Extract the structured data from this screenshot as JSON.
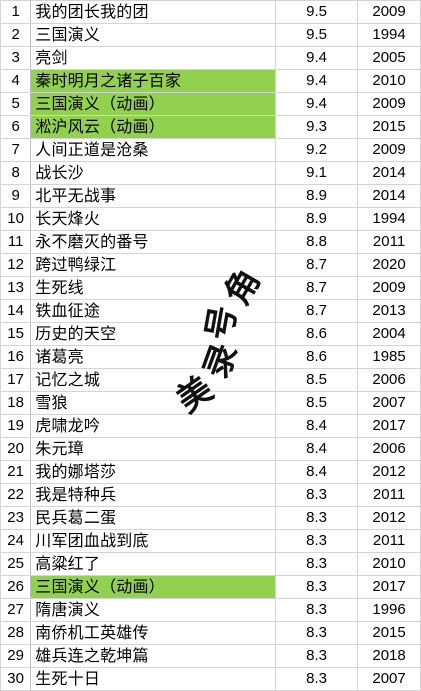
{
  "rows": [
    {
      "rank": "1",
      "title": "我的团长我的团",
      "score": "9.5",
      "year": "2009",
      "highlight": false
    },
    {
      "rank": "2",
      "title": "三国演义",
      "score": "9.5",
      "year": "1994",
      "highlight": false
    },
    {
      "rank": "3",
      "title": "亮剑",
      "score": "9.4",
      "year": "2005",
      "highlight": false
    },
    {
      "rank": "4",
      "title": "秦时明月之诸子百家",
      "score": "9.4",
      "year": "2010",
      "highlight": true
    },
    {
      "rank": "5",
      "title": "三国演义（动画）",
      "score": "9.4",
      "year": "2009",
      "highlight": true
    },
    {
      "rank": "6",
      "title": "淞沪风云（动画）",
      "score": "9.3",
      "year": "2015",
      "highlight": true
    },
    {
      "rank": "7",
      "title": "人间正道是沧桑",
      "score": "9.2",
      "year": "2009",
      "highlight": false
    },
    {
      "rank": "8",
      "title": "战长沙",
      "score": "9.1",
      "year": "2014",
      "highlight": false
    },
    {
      "rank": "9",
      "title": "北平无战事",
      "score": "8.9",
      "year": "2014",
      "highlight": false
    },
    {
      "rank": "10",
      "title": "长天烽火",
      "score": "8.9",
      "year": "1994",
      "highlight": false
    },
    {
      "rank": "11",
      "title": "永不磨灭的番号",
      "score": "8.8",
      "year": "2011",
      "highlight": false
    },
    {
      "rank": "12",
      "title": "跨过鸭绿江",
      "score": "8.7",
      "year": "2020",
      "highlight": false
    },
    {
      "rank": "13",
      "title": "生死线",
      "score": "8.7",
      "year": "2009",
      "highlight": false
    },
    {
      "rank": "14",
      "title": "铁血征途",
      "score": "8.7",
      "year": "2013",
      "highlight": false
    },
    {
      "rank": "15",
      "title": "历史的天空",
      "score": "8.6",
      "year": "2004",
      "highlight": false
    },
    {
      "rank": "16",
      "title": "诸葛亮",
      "score": "8.6",
      "year": "1985",
      "highlight": false
    },
    {
      "rank": "17",
      "title": "记忆之城",
      "score": "8.5",
      "year": "2006",
      "highlight": false
    },
    {
      "rank": "18",
      "title": "雪狼",
      "score": "8.5",
      "year": "2007",
      "highlight": false
    },
    {
      "rank": "19",
      "title": "虎啸龙吟",
      "score": "8.4",
      "year": "2017",
      "highlight": false
    },
    {
      "rank": "20",
      "title": "朱元璋",
      "score": "8.4",
      "year": "2006",
      "highlight": false
    },
    {
      "rank": "21",
      "title": "我的娜塔莎",
      "score": "8.4",
      "year": "2012",
      "highlight": false
    },
    {
      "rank": "22",
      "title": "我是特种兵",
      "score": "8.3",
      "year": "2011",
      "highlight": false
    },
    {
      "rank": "23",
      "title": "民兵葛二蛋",
      "score": "8.3",
      "year": "2012",
      "highlight": false
    },
    {
      "rank": "24",
      "title": "川军团血战到底",
      "score": "8.3",
      "year": "2011",
      "highlight": false
    },
    {
      "rank": "25",
      "title": "高粱红了",
      "score": "8.3",
      "year": "2010",
      "highlight": false
    },
    {
      "rank": "26",
      "title": "三国演义（动画）",
      "score": "8.3",
      "year": "2017",
      "highlight": true
    },
    {
      "rank": "27",
      "title": "隋唐演义",
      "score": "8.3",
      "year": "1996",
      "highlight": false
    },
    {
      "rank": "28",
      "title": "南侨机工英雄传",
      "score": "8.3",
      "year": "2015",
      "highlight": false
    },
    {
      "rank": "29",
      "title": "雄兵连之乾坤篇",
      "score": "8.3",
      "year": "2018",
      "highlight": false
    },
    {
      "rank": "30",
      "title": "生死十日",
      "score": "8.3",
      "year": "2007",
      "highlight": false
    }
  ],
  "watermark": {
    "chars": [
      "角",
      "号",
      "美",
      "录"
    ]
  }
}
